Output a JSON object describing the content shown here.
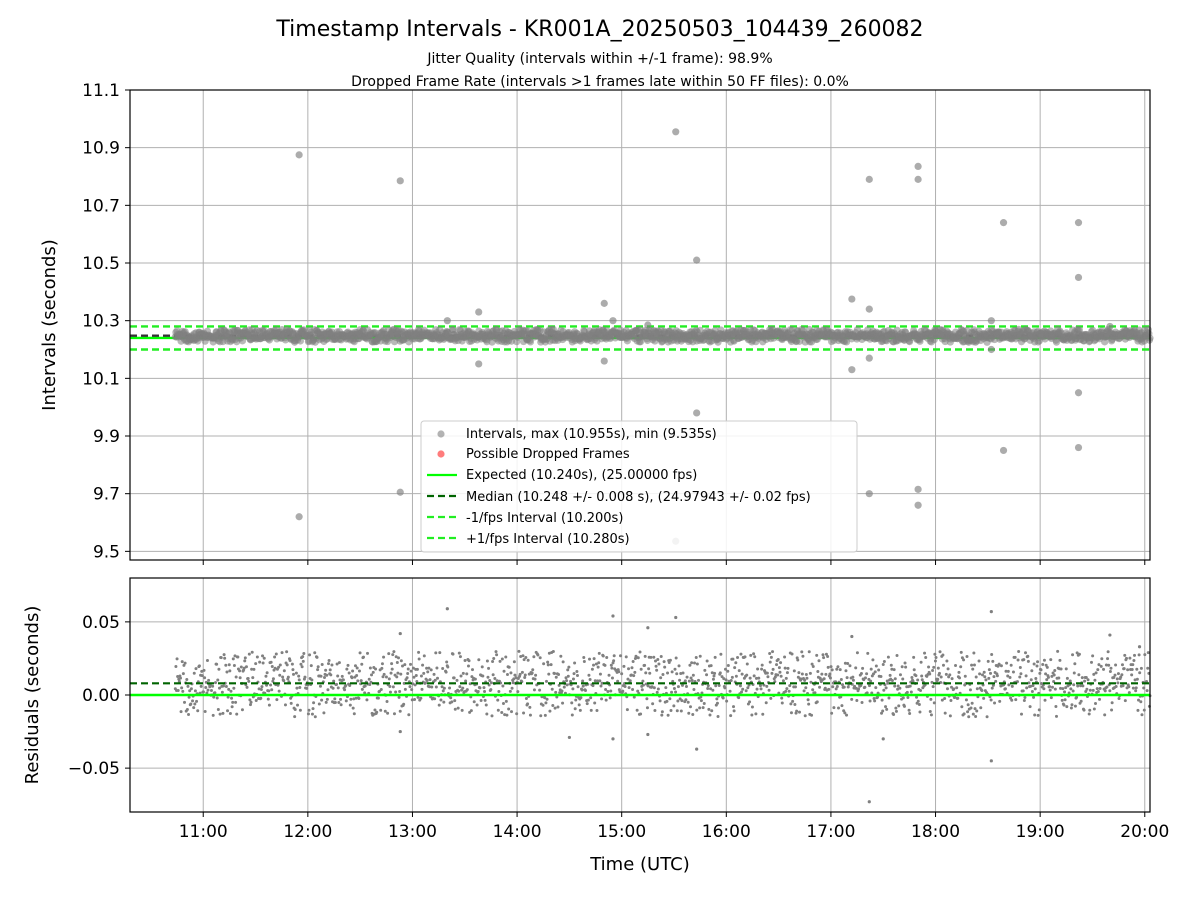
{
  "colors": {
    "expected": "#00ff00",
    "median": "#006400",
    "bounds": "#22ee22",
    "points": "#808080",
    "dropped": "#ff4444",
    "grid": "#b0b0b0"
  },
  "chart_data": [
    {
      "type": "scatter",
      "panel": "intervals",
      "title": "Timestamp Intervals - KR001A_20250503_104439_260082",
      "subtitle_1": "Jitter Quality (intervals within +/-1 frame): 98.9%",
      "subtitle_2": "Dropped Frame Rate (intervals >1 frames late within 50 FF files): 0.0%",
      "ylabel": "Intervals (seconds)",
      "xlim": [
        "10:18",
        "20:03"
      ],
      "ylim": [
        9.47,
        11.1
      ],
      "y_ticks": [
        9.5,
        9.7,
        9.9,
        10.1,
        10.3,
        10.5,
        10.7,
        10.9,
        11.1
      ],
      "y_tick_labels": [
        "9.5",
        "9.7",
        "9.9",
        "10.1",
        "10.3",
        "10.5",
        "10.7",
        "10.9",
        "11.1"
      ],
      "grid": true,
      "legend_position": "lower-center",
      "series": [
        {
          "name": "Intervals, max (10.955s), min (9.535s)",
          "kind": "scatter"
        },
        {
          "name": "Possible Dropped Frames",
          "kind": "scatter",
          "values": []
        },
        {
          "name": "Expected (10.240s), (25.00000 fps)",
          "kind": "hline",
          "y": 10.24
        },
        {
          "name": "Median (10.248 +/- 0.008 s), (24.97943 +/- 0.02 fps)",
          "kind": "hline",
          "y": 10.248
        },
        {
          "name": "-1/fps Interval (10.200s)",
          "kind": "hline",
          "y": 10.2
        },
        {
          "name": "+1/fps Interval (10.280s)",
          "kind": "hline",
          "y": 10.28
        }
      ],
      "outliers": [
        {
          "x": "11:55",
          "y": 10.875
        },
        {
          "x": "11:55",
          "y": 9.62
        },
        {
          "x": "12:53",
          "y": 10.785
        },
        {
          "x": "12:53",
          "y": 9.705
        },
        {
          "x": "13:20",
          "y": 10.3
        },
        {
          "x": "13:38",
          "y": 10.33
        },
        {
          "x": "13:38",
          "y": 10.15
        },
        {
          "x": "14:50",
          "y": 10.36
        },
        {
          "x": "14:50",
          "y": 10.16
        },
        {
          "x": "14:55",
          "y": 10.3
        },
        {
          "x": "15:15",
          "y": 10.285
        },
        {
          "x": "15:31",
          "y": 10.955
        },
        {
          "x": "15:31",
          "y": 9.535
        },
        {
          "x": "15:43",
          "y": 10.51
        },
        {
          "x": "15:43",
          "y": 9.98
        },
        {
          "x": "17:12",
          "y": 10.375
        },
        {
          "x": "17:12",
          "y": 10.13
        },
        {
          "x": "17:22",
          "y": 10.79
        },
        {
          "x": "17:22",
          "y": 10.34
        },
        {
          "x": "17:22",
          "y": 10.17
        },
        {
          "x": "17:22",
          "y": 9.7
        },
        {
          "x": "17:50",
          "y": 10.835
        },
        {
          "x": "17:50",
          "y": 10.79
        },
        {
          "x": "17:50",
          "y": 9.715
        },
        {
          "x": "17:50",
          "y": 9.66
        },
        {
          "x": "18:32",
          "y": 10.3
        },
        {
          "x": "18:32",
          "y": 10.2
        },
        {
          "x": "18:39",
          "y": 10.64
        },
        {
          "x": "18:39",
          "y": 9.85
        },
        {
          "x": "19:22",
          "y": 10.64
        },
        {
          "x": "19:22",
          "y": 10.45
        },
        {
          "x": "19:22",
          "y": 10.05
        },
        {
          "x": "19:22",
          "y": 9.86
        },
        {
          "x": "19:40",
          "y": 10.28
        }
      ]
    },
    {
      "type": "scatter",
      "panel": "residuals",
      "xlabel": "Time (UTC)",
      "ylabel": "Residuals (seconds)",
      "xlim": [
        "10:18",
        "20:03"
      ],
      "x_ticks": [
        "11:00",
        "12:00",
        "13:00",
        "14:00",
        "15:00",
        "16:00",
        "17:00",
        "18:00",
        "19:00",
        "20:00"
      ],
      "ylim": [
        -0.08,
        0.08
      ],
      "y_ticks": [
        -0.05,
        0.0,
        0.05
      ],
      "y_tick_labels": [
        "−0.05",
        "0.00",
        "0.05"
      ],
      "grid": true,
      "reference_lines": [
        {
          "name": "expected",
          "y": 0.0
        },
        {
          "name": "median",
          "y": 0.008
        }
      ],
      "series": [
        {
          "name": "residuals",
          "x_range": [
            "10:44",
            "20:03"
          ],
          "center": 0.008,
          "spread": 0.012
        }
      ],
      "outliers": [
        {
          "x": "12:53",
          "y": 0.042
        },
        {
          "x": "12:53",
          "y": -0.025
        },
        {
          "x": "13:20",
          "y": 0.059
        },
        {
          "x": "14:30",
          "y": -0.029
        },
        {
          "x": "14:55",
          "y": 0.054
        },
        {
          "x": "14:55",
          "y": -0.03
        },
        {
          "x": "15:15",
          "y": 0.046
        },
        {
          "x": "15:15",
          "y": -0.027
        },
        {
          "x": "15:31",
          "y": 0.053
        },
        {
          "x": "15:43",
          "y": -0.037
        },
        {
          "x": "17:12",
          "y": 0.04
        },
        {
          "x": "17:22",
          "y": -0.073
        },
        {
          "x": "17:30",
          "y": -0.03
        },
        {
          "x": "18:32",
          "y": 0.057
        },
        {
          "x": "18:32",
          "y": -0.045
        },
        {
          "x": "19:40",
          "y": 0.041
        },
        {
          "x": "19:57",
          "y": 0.033
        }
      ]
    }
  ]
}
